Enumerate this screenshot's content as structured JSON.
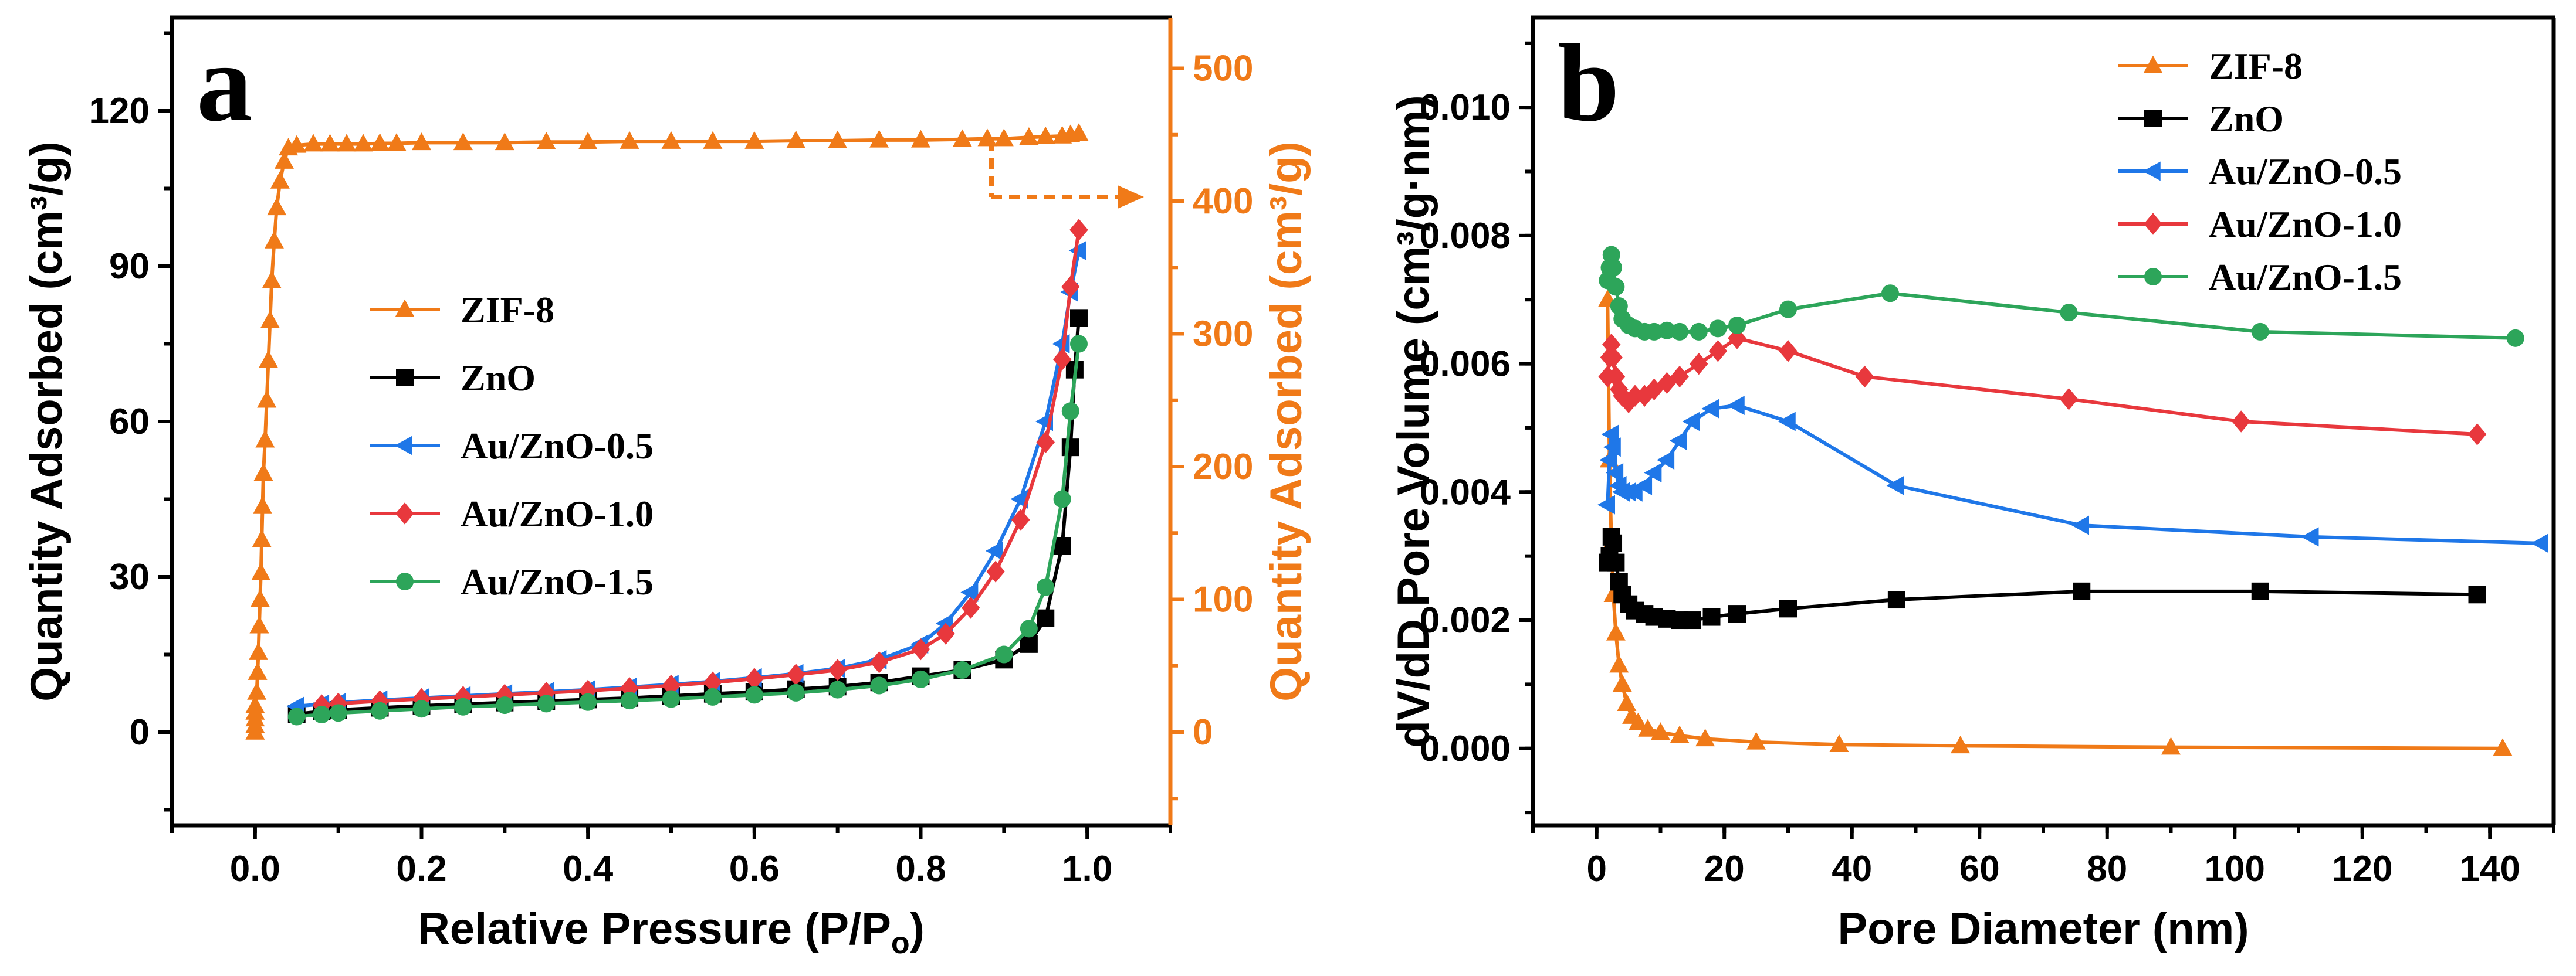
{
  "chart_data": [
    {
      "type": "line",
      "panel_label": "a",
      "xlabel": "Relative Pressure (P/P",
      "xlabel_sub": "o",
      "xlabel_close": ")",
      "ylabel": "Quantity Adsorbed (cm³/g)",
      "y2label": "Quantity Adsorbed (cm³/g)",
      "xlim": [
        -0.1,
        1.1
      ],
      "ylim": [
        -18,
        138
      ],
      "y2lim": [
        -70.2,
        538.2
      ],
      "xticks": [
        "0.0",
        "0.2",
        "0.4",
        "0.6",
        "0.8",
        "1.0"
      ],
      "yticks": [
        "0",
        "30",
        "60",
        "90",
        "120"
      ],
      "y2ticks": [
        "0",
        "100",
        "200",
        "300",
        "400",
        "500"
      ],
      "annotation": "dashed arrow from ZIF-8 curve at P/Po 0.88 to right axis",
      "legend": [
        "ZIF-8",
        "ZnO",
        "Au/ZnO-0.5",
        "Au/ZnO-1.0",
        "Au/ZnO-1.5"
      ],
      "series": [
        {
          "name": "ZIF-8",
          "axis": "right",
          "color": "#f07a18",
          "marker": "triangle",
          "x": [
            0.0,
            0.0,
            0.0,
            0.0,
            0.0,
            0.002,
            0.003,
            0.004,
            0.005,
            0.006,
            0.007,
            0.008,
            0.009,
            0.01,
            0.012,
            0.014,
            0.016,
            0.018,
            0.02,
            0.023,
            0.026,
            0.03,
            0.035,
            0.04,
            0.05,
            0.07,
            0.09,
            0.11,
            0.13,
            0.15,
            0.17,
            0.2,
            0.25,
            0.3,
            0.35,
            0.4,
            0.45,
            0.5,
            0.55,
            0.6,
            0.65,
            0.7,
            0.75,
            0.8,
            0.85,
            0.88,
            0.9,
            0.93,
            0.95,
            0.97,
            0.98,
            0.99
          ],
          "y": [
            0,
            5,
            10,
            15,
            20,
            30,
            45,
            60,
            80,
            100,
            120,
            145,
            170,
            195,
            220,
            250,
            280,
            310,
            340,
            370,
            395,
            415,
            430,
            440,
            442,
            443,
            443,
            443,
            443,
            443.5,
            443.5,
            444,
            444,
            444,
            444.5,
            444.5,
            445,
            445,
            445,
            445,
            445.5,
            445.5,
            446,
            446,
            446.5,
            447,
            447,
            448,
            448.5,
            449,
            450,
            451
          ]
        },
        {
          "name": "ZnO",
          "axis": "left",
          "color": "#000000",
          "marker": "square",
          "x": [
            0.05,
            0.08,
            0.1,
            0.15,
            0.2,
            0.25,
            0.3,
            0.35,
            0.4,
            0.45,
            0.5,
            0.55,
            0.6,
            0.65,
            0.7,
            0.75,
            0.8,
            0.85,
            0.9,
            0.93,
            0.95,
            0.97,
            0.98,
            0.985,
            0.99
          ],
          "y": [
            3.5,
            4.0,
            4.3,
            4.7,
            5.1,
            5.4,
            5.7,
            6.0,
            6.3,
            6.6,
            7.0,
            7.4,
            7.8,
            8.3,
            8.8,
            9.6,
            10.8,
            12.0,
            14.0,
            17.0,
            22.0,
            36.0,
            55.0,
            70.0,
            80.0
          ]
        },
        {
          "name": "Au/ZnO-0.5",
          "axis": "left",
          "color": "#1f77e8",
          "marker": "triangle-left",
          "x": [
            0.05,
            0.08,
            0.1,
            0.15,
            0.2,
            0.25,
            0.3,
            0.35,
            0.4,
            0.45,
            0.5,
            0.55,
            0.6,
            0.65,
            0.7,
            0.75,
            0.8,
            0.83,
            0.86,
            0.89,
            0.92,
            0.95,
            0.97,
            0.98,
            0.99
          ],
          "y": [
            5.0,
            5.4,
            5.7,
            6.2,
            6.6,
            7.0,
            7.4,
            7.8,
            8.2,
            8.7,
            9.2,
            9.8,
            10.5,
            11.3,
            12.3,
            14.0,
            17.0,
            21.0,
            27.0,
            35.0,
            45.0,
            60.0,
            75.0,
            85.0,
            93.0
          ]
        },
        {
          "name": "Au/ZnO-1.0",
          "axis": "left",
          "color": "#e8383d",
          "marker": "diamond",
          "x": [
            0.08,
            0.1,
            0.15,
            0.2,
            0.25,
            0.3,
            0.35,
            0.4,
            0.45,
            0.5,
            0.55,
            0.6,
            0.65,
            0.7,
            0.75,
            0.8,
            0.83,
            0.86,
            0.89,
            0.92,
            0.95,
            0.97,
            0.98,
            0.99
          ],
          "y": [
            5.2,
            5.5,
            6.0,
            6.4,
            6.8,
            7.2,
            7.6,
            8.0,
            8.5,
            9.0,
            9.6,
            10.3,
            11.1,
            12.0,
            13.5,
            16.0,
            19.0,
            24.0,
            31.0,
            41.0,
            56.0,
            72.0,
            86.0,
            97.0
          ]
        },
        {
          "name": "Au/ZnO-1.5",
          "axis": "left",
          "color": "#2da55a",
          "marker": "circle",
          "x": [
            0.05,
            0.08,
            0.1,
            0.15,
            0.2,
            0.25,
            0.3,
            0.35,
            0.4,
            0.45,
            0.5,
            0.55,
            0.6,
            0.65,
            0.7,
            0.75,
            0.8,
            0.85,
            0.9,
            0.93,
            0.95,
            0.97,
            0.98,
            0.99
          ],
          "y": [
            3.0,
            3.4,
            3.7,
            4.1,
            4.5,
            4.9,
            5.2,
            5.5,
            5.8,
            6.1,
            6.4,
            6.8,
            7.2,
            7.6,
            8.2,
            9.0,
            10.2,
            12.0,
            15.0,
            20.0,
            28.0,
            45.0,
            62.0,
            75.0
          ]
        }
      ]
    },
    {
      "type": "line",
      "panel_label": "b",
      "xlabel": "Pore Diameter (nm)",
      "ylabel": "dV/dD Pore Volume (cm³/g·nm)",
      "xlim": [
        -10,
        150
      ],
      "ylim": [
        -0.0012,
        0.0114
      ],
      "xticks": [
        "0",
        "20",
        "40",
        "60",
        "80",
        "100",
        "120",
        "140"
      ],
      "yticks": [
        "0.000",
        "0.002",
        "0.004",
        "0.006",
        "0.008",
        "0.010"
      ],
      "legend": [
        "ZIF-8",
        "ZnO",
        "Au/ZnO-0.5",
        "Au/ZnO-1.0",
        "Au/ZnO-1.5"
      ],
      "series": [
        {
          "name": "ZIF-8",
          "color": "#f07a18",
          "marker": "triangle",
          "x": [
            1.7,
            2.0,
            2.3,
            2.6,
            3.0,
            3.5,
            4.0,
            4.7,
            5.5,
            6.5,
            8.0,
            10,
            13,
            17,
            25,
            38,
            57,
            90,
            142
          ],
          "y": [
            0.007,
            0.0045,
            0.0032,
            0.0024,
            0.0018,
            0.0013,
            0.001,
            0.0007,
            0.0005,
            0.0004,
            0.0003,
            0.00025,
            0.0002,
            0.00015,
            0.0001,
            6e-05,
            4e-05,
            2e-05,
            0.0
          ]
        },
        {
          "name": "ZnO",
          "color": "#000000",
          "marker": "square",
          "x": [
            1.7,
            2.0,
            2.3,
            2.6,
            3.0,
            3.5,
            4.0,
            5.0,
            6.0,
            7.5,
            9.0,
            11,
            13,
            15,
            18,
            22,
            30,
            47,
            76,
            104,
            138
          ],
          "y": [
            0.0029,
            0.003,
            0.0033,
            0.0032,
            0.0029,
            0.0026,
            0.0024,
            0.00225,
            0.00215,
            0.0021,
            0.00205,
            0.00202,
            0.002,
            0.002,
            0.00205,
            0.0021,
            0.00218,
            0.00232,
            0.00245,
            0.00245,
            0.0024
          ]
        },
        {
          "name": "Au/ZnO-0.5",
          "color": "#1f77e8",
          "marker": "triangle-left",
          "x": [
            1.7,
            2.0,
            2.3,
            2.6,
            3.0,
            3.5,
            4.0,
            5.0,
            6.0,
            7.5,
            9.0,
            11,
            13,
            15,
            18,
            22,
            30,
            47,
            76,
            112,
            148
          ],
          "y": [
            0.0038,
            0.0045,
            0.0049,
            0.0047,
            0.0043,
            0.0041,
            0.004,
            0.004,
            0.004,
            0.0041,
            0.0043,
            0.0045,
            0.0048,
            0.0051,
            0.0053,
            0.00535,
            0.0051,
            0.0041,
            0.00348,
            0.0033,
            0.0032
          ]
        },
        {
          "name": "Au/ZnO-1.0",
          "color": "#e8383d",
          "marker": "diamond",
          "x": [
            1.7,
            2.0,
            2.3,
            2.6,
            3.0,
            3.5,
            4.0,
            5.0,
            6.0,
            7.5,
            9.0,
            11,
            13,
            16,
            19,
            22,
            30,
            42,
            74,
            101,
            138
          ],
          "y": [
            0.0058,
            0.0061,
            0.0063,
            0.0061,
            0.0058,
            0.0056,
            0.0055,
            0.0054,
            0.0055,
            0.0055,
            0.0056,
            0.0057,
            0.0058,
            0.006,
            0.0062,
            0.0064,
            0.0062,
            0.0058,
            0.00545,
            0.0051,
            0.0049
          ]
        },
        {
          "name": "Au/ZnO-1.5",
          "color": "#2da55a",
          "marker": "circle",
          "x": [
            1.7,
            2.0,
            2.3,
            2.6,
            3.0,
            3.5,
            4.0,
            5.0,
            6.0,
            7.5,
            9.0,
            11,
            13,
            16,
            19,
            22,
            30,
            46,
            74,
            104,
            144
          ],
          "y": [
            0.0073,
            0.0075,
            0.0077,
            0.0075,
            0.0072,
            0.0069,
            0.0067,
            0.0066,
            0.00655,
            0.0065,
            0.0065,
            0.00652,
            0.0065,
            0.0065,
            0.00655,
            0.0066,
            0.00685,
            0.0071,
            0.0068,
            0.0065,
            0.0064
          ]
        }
      ]
    }
  ]
}
